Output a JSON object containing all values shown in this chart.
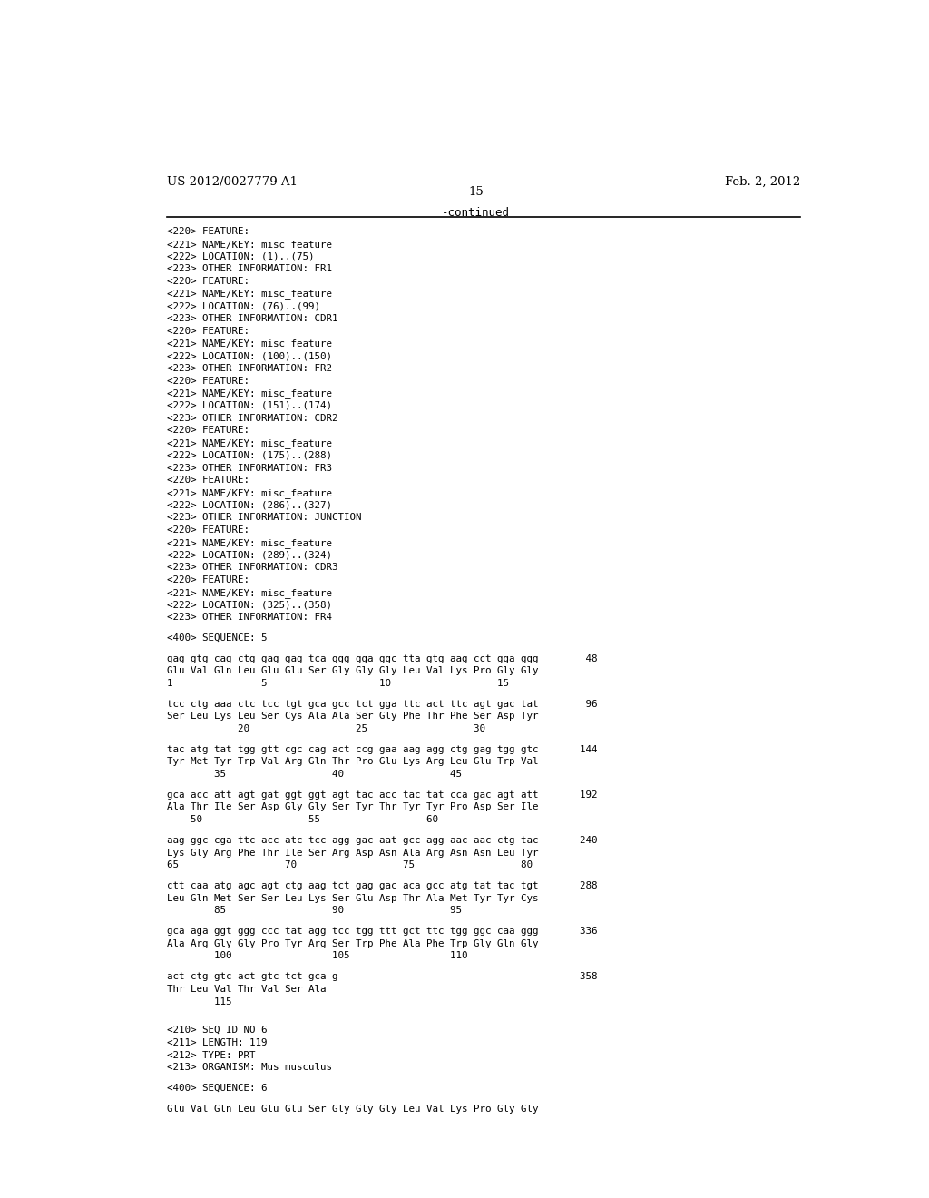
{
  "header_left": "US 2012/0027779 A1",
  "header_right": "Feb. 2, 2012",
  "page_number": "15",
  "continued_text": "-continued",
  "background_color": "#ffffff",
  "text_color": "#000000",
  "content_lines": [
    "<220> FEATURE:",
    "<221> NAME/KEY: misc_feature",
    "<222> LOCATION: (1)..(75)",
    "<223> OTHER INFORMATION: FR1",
    "<220> FEATURE:",
    "<221> NAME/KEY: misc_feature",
    "<222> LOCATION: (76)..(99)",
    "<223> OTHER INFORMATION: CDR1",
    "<220> FEATURE:",
    "<221> NAME/KEY: misc_feature",
    "<222> LOCATION: (100)..(150)",
    "<223> OTHER INFORMATION: FR2",
    "<220> FEATURE:",
    "<221> NAME/KEY: misc_feature",
    "<222> LOCATION: (151)..(174)",
    "<223> OTHER INFORMATION: CDR2",
    "<220> FEATURE:",
    "<221> NAME/KEY: misc_feature",
    "<222> LOCATION: (175)..(288)",
    "<223> OTHER INFORMATION: FR3",
    "<220> FEATURE:",
    "<221> NAME/KEY: misc_feature",
    "<222> LOCATION: (286)..(327)",
    "<223> OTHER INFORMATION: JUNCTION",
    "<220> FEATURE:",
    "<221> NAME/KEY: misc_feature",
    "<222> LOCATION: (289)..(324)",
    "<223> OTHER INFORMATION: CDR3",
    "<220> FEATURE:",
    "<221> NAME/KEY: misc_feature",
    "<222> LOCATION: (325)..(358)",
    "<223> OTHER INFORMATION: FR4",
    "",
    "<400> SEQUENCE: 5",
    "",
    "gag gtg cag ctg gag gag tca ggg gga ggc tta gtg aag cct gga ggg        48",
    "Glu Val Gln Leu Glu Glu Ser Gly Gly Gly Leu Val Lys Pro Gly Gly",
    "1               5                   10                  15",
    "",
    "tcc ctg aaa ctc tcc tgt gca gcc tct gga ttc act ttc agt gac tat        96",
    "Ser Leu Lys Leu Ser Cys Ala Ala Ser Gly Phe Thr Phe Ser Asp Tyr",
    "            20                  25                  30",
    "",
    "tac atg tat tgg gtt cgc cag act ccg gaa aag agg ctg gag tgg gtc       144",
    "Tyr Met Tyr Trp Val Arg Gln Thr Pro Glu Lys Arg Leu Glu Trp Val",
    "        35                  40                  45",
    "",
    "gca acc att agt gat ggt ggt agt tac acc tac tat cca gac agt att       192",
    "Ala Thr Ile Ser Asp Gly Gly Ser Tyr Thr Tyr Tyr Pro Asp Ser Ile",
    "    50                  55                  60",
    "",
    "aag ggc cga ttc acc atc tcc agg gac aat gcc agg aac aac ctg tac       240",
    "Lys Gly Arg Phe Thr Ile Ser Arg Asp Asn Ala Arg Asn Asn Leu Tyr",
    "65                  70                  75                  80",
    "",
    "ctt caa atg agc agt ctg aag tct gag gac aca gcc atg tat tac tgt       288",
    "Leu Gln Met Ser Ser Leu Lys Ser Glu Asp Thr Ala Met Tyr Tyr Cys",
    "        85                  90                  95",
    "",
    "gca aga ggt ggg ccc tat agg tcc tgg ttt gct ttc tgg ggc caa ggg       336",
    "Ala Arg Gly Gly Pro Tyr Arg Ser Trp Phe Ala Phe Trp Gly Gln Gly",
    "        100                 105                 110",
    "",
    "act ctg gtc act gtc tct gca g                                         358",
    "Thr Leu Val Thr Val Ser Ala",
    "        115",
    "",
    "",
    "<210> SEQ ID NO 6",
    "<211> LENGTH: 119",
    "<212> TYPE: PRT",
    "<213> ORGANISM: Mus musculus",
    "",
    "<400> SEQUENCE: 6",
    "",
    "Glu Val Gln Leu Glu Glu Ser Gly Gly Gly Leu Val Lys Pro Gly Gly"
  ]
}
